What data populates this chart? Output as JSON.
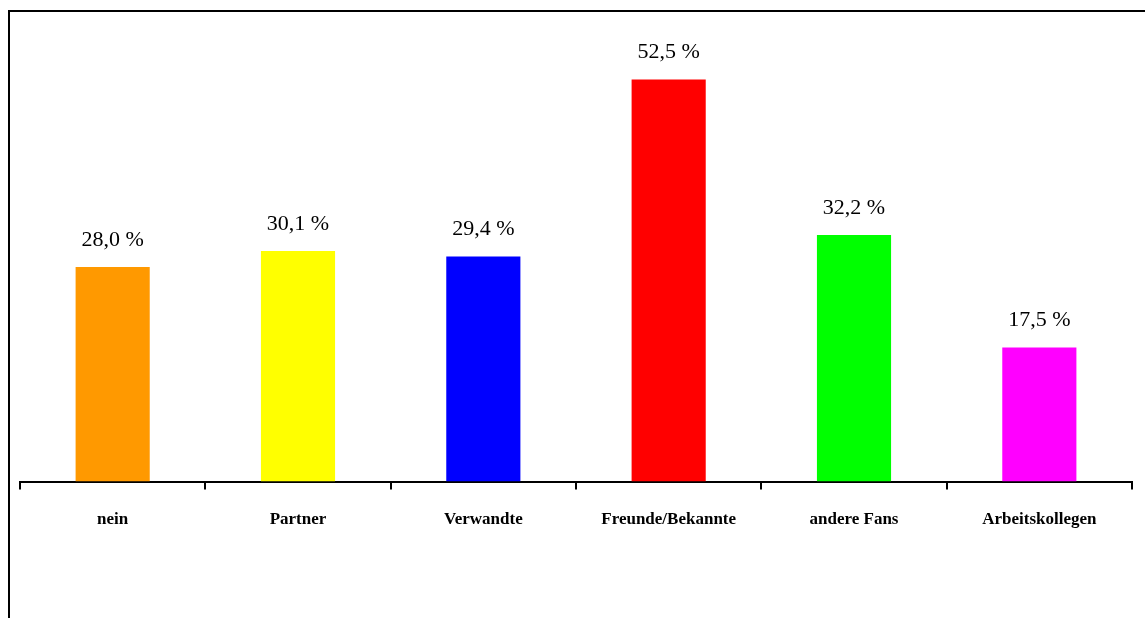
{
  "chart_data": {
    "type": "bar",
    "categories": [
      "nein",
      "Partner",
      "Verwandte",
      "Freunde/Bekannte",
      "andere Fans",
      "Arbeitskollegen"
    ],
    "values": [
      28.0,
      30.1,
      29.4,
      52.5,
      32.2,
      17.5
    ],
    "colors": [
      "#ff9900",
      "#ffff00",
      "#0000ff",
      "#ff0000",
      "#00ff00",
      "#ff00ff"
    ],
    "value_labels": [
      "28,0 %",
      "30,1 %",
      "29,4 %",
      "52,5 %",
      "32,2 %",
      "17,5 %"
    ],
    "legend": false
  }
}
